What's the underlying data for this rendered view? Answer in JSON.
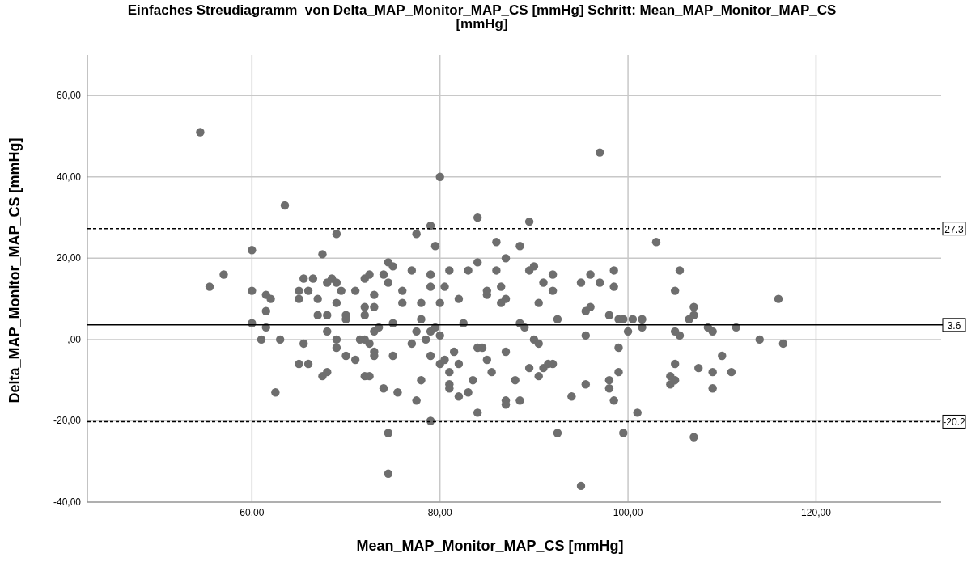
{
  "chart_data": {
    "type": "scatter",
    "title": "Einfaches Streudiagramm  von Delta_MAP_Monitor_MAP_CS [mmHg] Schritt: Mean_MAP_Monitor_MAP_CS [mmHg]",
    "xlabel": "Mean_MAP_Monitor_MAP_CS [mmHg]",
    "ylabel": "Delta_MAP_Monitor_MAP_CS [mmHg]",
    "xlim": [
      42.5,
      133.3
    ],
    "ylim": [
      -40,
      70
    ],
    "xticks": [
      {
        "value": 60,
        "label": "60,00"
      },
      {
        "value": 80,
        "label": "80,00"
      },
      {
        "value": 100,
        "label": "100,00"
      },
      {
        "value": 120,
        "label": "120,00"
      }
    ],
    "yticks": [
      {
        "value": -40,
        "label": "-40,00"
      },
      {
        "value": -20,
        "label": "-20,00"
      },
      {
        "value": 0,
        "label": ",00"
      },
      {
        "value": 20,
        "label": "20,00"
      },
      {
        "value": 40,
        "label": "40,00"
      },
      {
        "value": 60,
        "label": "60,00"
      }
    ],
    "grid": true,
    "marker": "circle",
    "ref_lines": [
      {
        "axis": "y",
        "value": 27.3,
        "label": "27.3",
        "color": "#000000",
        "line_style": "dashed"
      },
      {
        "axis": "y",
        "value": 3.6,
        "label": "3.6",
        "color": "#000000",
        "line_style": "solid"
      },
      {
        "axis": "y",
        "value": -20.2,
        "label": "-20.2",
        "color": "#000000",
        "line_style": "dashed"
      }
    ],
    "series": [
      {
        "color": "#6e6e6e",
        "x": [
          54.5,
          97,
          80,
          63.5,
          84,
          89.5,
          79,
          77.5,
          69,
          79.5,
          88.5,
          60,
          103,
          67.5,
          87,
          75,
          84,
          90,
          89.5,
          98.5,
          105.5,
          81,
          77,
          60,
          55.5,
          57,
          61.5,
          62,
          61.5,
          60,
          61,
          61.5,
          63,
          62.5,
          65,
          65.5,
          66,
          65,
          66.5,
          67,
          68,
          68.5,
          69,
          69,
          68,
          69.5,
          70,
          67,
          68,
          69,
          70,
          69,
          66,
          65,
          65.5,
          67.5,
          68,
          70,
          71,
          71,
          72,
          72.5,
          73,
          73,
          74,
          74.5,
          74.5,
          72,
          72,
          73,
          72,
          71.5,
          72.5,
          73,
          73,
          72,
          72.5,
          73.5,
          74,
          74.5,
          74.5,
          75,
          75,
          75.5,
          76,
          76,
          77,
          77.5,
          77.5,
          78,
          78,
          78,
          78.5,
          79,
          79,
          79,
          79,
          79,
          79.5,
          80,
          80,
          80.5,
          80,
          80.5,
          81,
          81,
          81,
          81.5,
          82,
          82,
          82,
          82.5,
          83,
          83,
          83.5,
          84,
          84,
          84.5,
          85,
          85,
          85,
          85.5,
          86,
          86,
          86.5,
          86.5,
          87,
          87,
          87,
          87,
          88,
          88.5,
          88.5,
          89,
          89.5,
          90,
          90.5,
          90.5,
          91,
          91,
          90.5,
          91.5,
          92,
          92,
          92,
          92.5,
          92.5,
          94,
          95,
          95,
          95.5,
          95.5,
          95.5,
          96,
          96,
          97,
          98,
          98,
          98,
          98.5,
          98.5,
          99,
          99,
          99,
          99.5,
          99.5,
          100,
          100.5,
          101,
          101.5,
          101.5,
          104.5,
          104.5,
          105,
          105,
          105,
          105,
          105.5,
          106.5,
          107,
          107,
          107,
          107.5,
          108.5,
          109,
          109,
          109,
          110,
          111,
          111.5,
          114,
          116,
          116.5
        ],
        "values": [
          51,
          46,
          40,
          33,
          30,
          29,
          28,
          26,
          26,
          23,
          23,
          22,
          24,
          21,
          20,
          18,
          19,
          18,
          17,
          17,
          17,
          17,
          17,
          12,
          13,
          16,
          11,
          10,
          7,
          4,
          0,
          3,
          0,
          -13,
          12,
          15,
          12,
          10,
          15,
          10,
          14,
          15,
          9,
          14,
          6,
          12,
          6,
          6,
          2,
          -2,
          -4,
          0,
          -6,
          -6,
          -1,
          -9,
          -8,
          5,
          -5,
          12,
          15,
          16,
          11,
          8,
          16,
          14,
          19,
          8,
          6,
          2,
          0,
          0,
          -1,
          -3,
          -4,
          -9,
          -9,
          3,
          -12,
          -23,
          -33,
          -4,
          4,
          -13,
          12,
          9,
          -1,
          -15,
          2,
          -10,
          9,
          5,
          0,
          -20,
          -4,
          13,
          16,
          2,
          3,
          1,
          -6,
          -5,
          9,
          13,
          -8,
          -11,
          -12,
          -3,
          10,
          -6,
          -14,
          4,
          17,
          -13,
          -10,
          -2,
          -18,
          -2,
          11,
          12,
          -5,
          -8,
          24,
          17,
          13,
          9,
          -15,
          -16,
          10,
          -3,
          -10,
          4,
          -15,
          3,
          -7,
          0,
          -1,
          -9,
          -7,
          14,
          9,
          -6,
          16,
          12,
          -6,
          -23,
          5,
          -14,
          14,
          -36,
          7,
          1,
          -11,
          16,
          8,
          14,
          6,
          -10,
          -12,
          13,
          -15,
          5,
          -2,
          -8,
          5,
          -23,
          2,
          5,
          -18,
          5,
          3,
          -9,
          -11,
          -6,
          -10,
          12,
          2,
          1,
          5,
          8,
          6,
          -24,
          -7,
          3,
          2,
          -8,
          -12,
          -4,
          -8,
          3,
          0,
          10,
          -1
        ]
      }
    ]
  }
}
